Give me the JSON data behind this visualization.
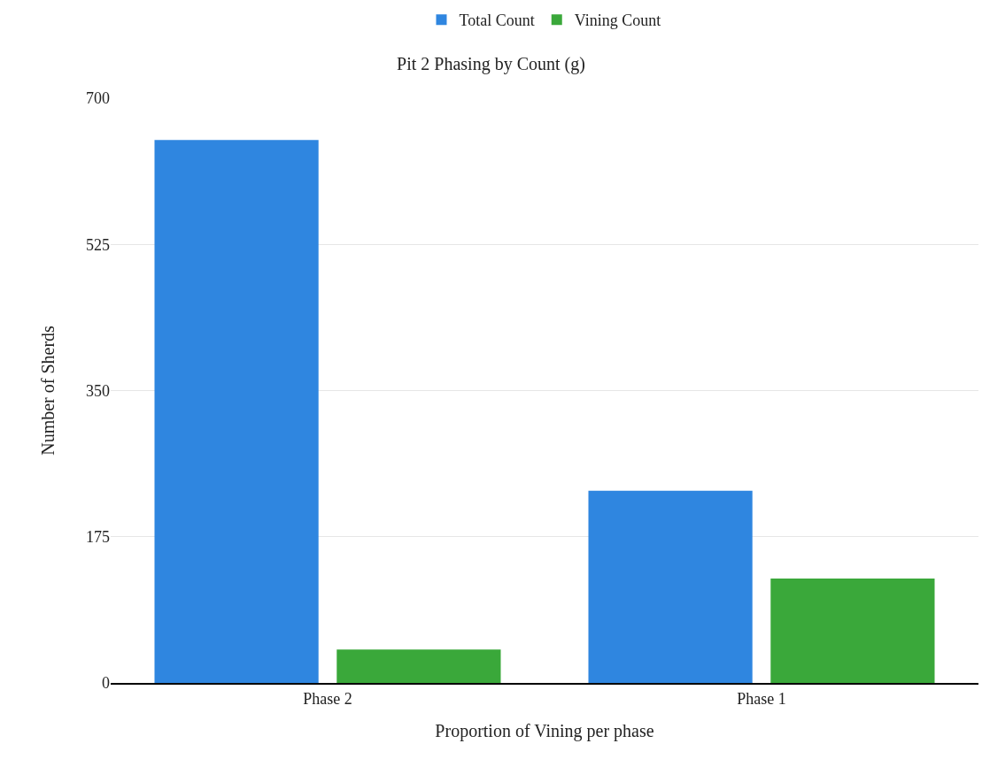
{
  "chart_data": {
    "type": "bar",
    "title": "Pit 2 Phasing by Count (g)",
    "xlabel": "Proportion of Vining per phase",
    "ylabel": "Number of Sherds",
    "categories": [
      "Phase 2",
      "Phase 1"
    ],
    "series": [
      {
        "name": "Total Count",
        "color": "#2f86e0",
        "values": [
          650,
          230
        ]
      },
      {
        "name": "Vining Count",
        "color": "#3aa83a",
        "values": [
          40,
          125
        ]
      }
    ],
    "ylim": [
      0,
      700
    ],
    "yticks": [
      0,
      175,
      350,
      525,
      700
    ],
    "grid": "y",
    "legend": "top"
  }
}
